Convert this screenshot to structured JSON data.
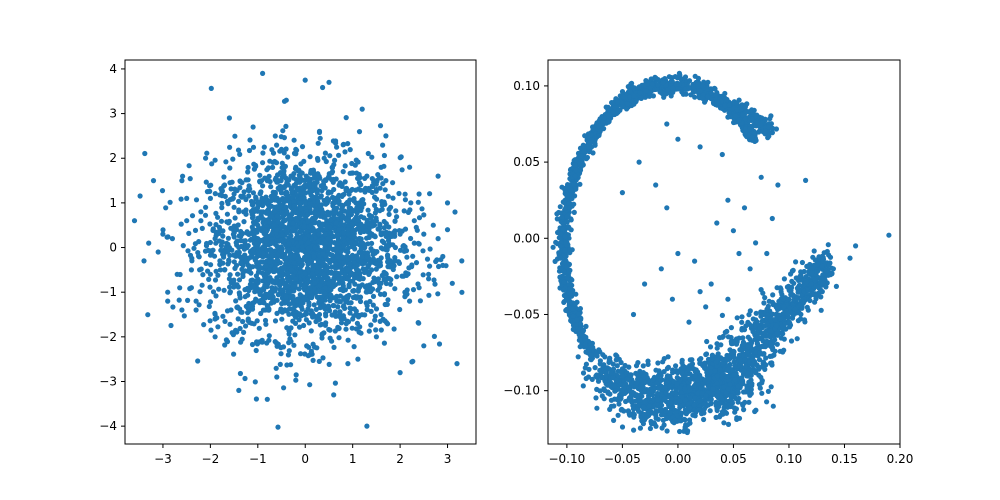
{
  "figure": {
    "background": "#ffffff"
  },
  "chart_data": [
    {
      "type": "scatter",
      "title": "",
      "xlabel": "",
      "ylabel": "",
      "xlim": [
        -3.8,
        3.6
      ],
      "ylim": [
        -4.4,
        4.2
      ],
      "xticks": [
        -3,
        -2,
        -1,
        0,
        1,
        2,
        3
      ],
      "xtick_labels": [
        "−3",
        "−2",
        "−1",
        "0",
        "1",
        "2",
        "3"
      ],
      "yticks": [
        -4,
        -3,
        -2,
        -1,
        0,
        1,
        2,
        3,
        4
      ],
      "ytick_labels": [
        "−4",
        "−3",
        "−2",
        "−1",
        "0",
        "1",
        "2",
        "3",
        "4"
      ],
      "grid": false,
      "color": "#1f77b4",
      "series": [
        {
          "x": [
            -0.9,
            0.0,
            -0.4,
            0.5,
            -2.1,
            2.8,
            1.7,
            -1.6,
            0.3,
            -0.2,
            1.2,
            -1.1,
            0.8,
            -2.6,
            2.2,
            3.0,
            -3.6,
            3.1,
            -3.2,
            1.3,
            0.6,
            -0.8,
            -1.4,
            2.0,
            -0.6,
            0.9,
            -1.9,
            2.5,
            -2.9,
            0.1,
            1.5,
            -0.3,
            -1.2,
            0.4,
            1.1,
            -2.4,
            2.6,
            -1.7,
            1.9,
            -0.5,
            0.7,
            -3.0,
            2.9,
            -2.2,
            2.3,
            1.0,
            -1.0,
            0.2,
            -0.7,
            1.4,
            -2.0,
            1.8,
            -1.5,
            0.0,
            3.2,
            -3.4,
            -2.8,
            2.7,
            1.6,
            -1.3,
            0.5,
            -0.1,
            1.3,
            -0.9,
            2.1,
            -2.3,
            0.8,
            -1.8,
            0.6,
            -2.7,
            2.4,
            -0.4,
            1.2,
            -1.1,
            0.3,
            -0.6,
            0.9,
            -0.2,
            1.7,
            -1.6,
            -2.5,
            2.9,
            -3.1,
            3.0,
            0.1,
            -0.8,
            1.0,
            -1.4,
            0.4,
            -0.3,
            2.2,
            -2.0,
            1.5,
            -1.2,
            0.7,
            -0.5,
            1.9,
            -1.9,
            2.6,
            -2.6,
            0.0,
            0.6,
            -1.0,
            1.4,
            -0.7,
            0.2,
            -1.5,
            1.1,
            2.0,
            -2.2,
            0.9,
            -0.1,
            1.6,
            -1.7,
            0.5,
            -0.4,
            1.3,
            -1.3,
            2.3,
            -2.4,
            0.8,
            -0.9,
            1.8,
            -1.8,
            0.3,
            -0.2,
            2.8,
            -2.9,
            1.0,
            -1.1,
            0.4,
            -0.6,
            1.2,
            -1.2,
            2.5,
            -2.5,
            0.7,
            -0.8,
            1.5,
            -1.6,
            0.1,
            0.0,
            -3.3,
            3.3,
            0.6,
            -0.3,
            1.1,
            -1.4,
            2.1,
            -2.1,
            0.2,
            -0.5,
            1.7,
            -1.9,
            0.9,
            -0.7,
            1.4,
            -1.0,
            2.4,
            -2.3
          ],
          "y": [
            3.9,
            3.75,
            3.3,
            3.7,
            2.0,
            1.6,
            2.5,
            2.9,
            2.6,
            2.2,
            3.1,
            2.7,
            2.3,
            1.5,
            1.8,
            1.0,
            0.6,
            -0.8,
            1.5,
            -4.0,
            -3.3,
            -3.4,
            -3.2,
            -2.8,
            -2.9,
            -2.6,
            -2.0,
            -2.2,
            -1.2,
            -2.4,
            -2.0,
            -1.8,
            -1.6,
            -1.3,
            -1.1,
            -0.9,
            -0.7,
            -0.5,
            -0.3,
            -0.1,
            0.1,
            0.3,
            -0.4,
            0.8,
            0.6,
            0.4,
            0.2,
            0.0,
            -0.2,
            0.5,
            -0.6,
            0.9,
            1.2,
            1.4,
            -2.6,
            -0.3,
            0.2,
            0.5,
            -1.5,
            -1.9,
            -0.8,
            1.1,
            1.6,
            1.9,
            -1.0,
            -1.4,
            0.7,
            -0.3,
            1.3,
            -0.6,
            -0.9,
            0.9,
            0.1,
            1.0,
            -1.2,
            0.4,
            -0.5,
            1.8,
            0.3,
            -0.7,
            0.6,
            -0.2,
            -0.1,
            0.4,
            -1.0,
            1.5,
            -1.6,
            0.8,
            2.0,
            -2.1,
            -1.2,
            1.1,
            1.3,
            -0.4,
            -1.8,
            2.2,
            0.0,
            0.2,
            -0.6,
            -1.4,
            1.0,
            -1.3,
            0.5,
            0.7,
            -0.9,
            -0.4,
            0.9,
            -1.7,
            0.3,
            0.6,
            -0.1,
            1.2,
            -0.8,
            1.4,
            1.6,
            -1.1,
            -0.2,
            0.8,
            0.1,
            -0.5,
            1.7,
            0.0,
            -0.3,
            0.4,
            -1.5,
            2.1,
            0.2,
            -1.0,
            0.5,
            1.0,
            -0.6,
            0.7,
            -0.2,
            1.3,
            0.3,
            1.1,
            -0.7,
            -1.3,
            0.6,
            0.0,
            -0.9,
            0.2,
            0.1,
            -0.3,
            0.8,
            1.6,
            -0.4,
            0.0,
            -1.1,
            0.9,
            -0.8,
            0.5,
            1.5,
            -1.6,
            -0.7,
            0.3,
            -0.5,
            0.4,
            1.2,
            -1.2
          ],
          "distribution": "standard bivariate normal, ~5000 points"
        }
      ]
    },
    {
      "type": "scatter",
      "title": "",
      "xlabel": "",
      "ylabel": "",
      "xlim": [
        -0.117,
        0.2
      ],
      "ylim": [
        -0.135,
        0.117
      ],
      "xticks": [
        -0.1,
        -0.05,
        0.0,
        0.05,
        0.1,
        0.15,
        0.2
      ],
      "xtick_labels": [
        "−0.10",
        "−0.05",
        "0.00",
        "0.05",
        "0.10",
        "0.15",
        "0.20"
      ],
      "yticks": [
        -0.1,
        -0.05,
        0.0,
        0.05,
        0.1
      ],
      "ytick_labels": [
        "−0.10",
        "−0.05",
        "0.00",
        "0.05",
        "0.10"
      ],
      "grid": false,
      "color": "#1f77b4",
      "series": [
        {
          "x": [
            0.19,
            0.16,
            0.155,
            0.14,
            0.13,
            0.12,
            0.1,
            0.115,
            0.09,
            0.075,
            0.06,
            0.045,
            0.04,
            0.02,
            0.0,
            -0.01,
            0.035,
            0.05,
            0.055,
            0.07,
            0.085,
            0.11,
            0.125,
            0.13,
            0.0,
            -0.04,
            -0.03,
            -0.015,
            -0.005,
            0.01,
            0.02,
            0.025,
            0.04,
            0.06,
            0.075,
            0.09,
            -0.01,
            -0.02,
            -0.035,
            -0.05,
            0.015,
            0.03,
            0.045,
            0.065,
            0.08,
            0.095,
            0.1
          ],
          "y": [
            0.002,
            -0.005,
            -0.013,
            -0.02,
            -0.018,
            -0.03,
            -0.04,
            0.038,
            0.035,
            0.04,
            0.02,
            0.025,
            0.055,
            0.06,
            0.065,
            0.075,
            0.01,
            0.005,
            -0.01,
            -0.003,
            0.013,
            -0.025,
            -0.022,
            -0.035,
            -0.01,
            -0.05,
            -0.03,
            -0.02,
            -0.04,
            -0.055,
            -0.035,
            -0.045,
            -0.065,
            -0.06,
            -0.05,
            -0.045,
            0.02,
            0.035,
            0.05,
            0.03,
            -0.015,
            -0.03,
            -0.04,
            -0.02,
            -0.01,
            -0.04,
            -0.055
          ],
          "arc": {
            "center": [
              -0.006,
              -0.012
            ],
            "radii": [
              0.1,
              0.113
            ],
            "from_deg": -80,
            "to_deg": 35,
            "shape": "C-shaped band ending in a diagonal branch toward (0.16, -0.01)"
          }
        }
      ]
    }
  ]
}
